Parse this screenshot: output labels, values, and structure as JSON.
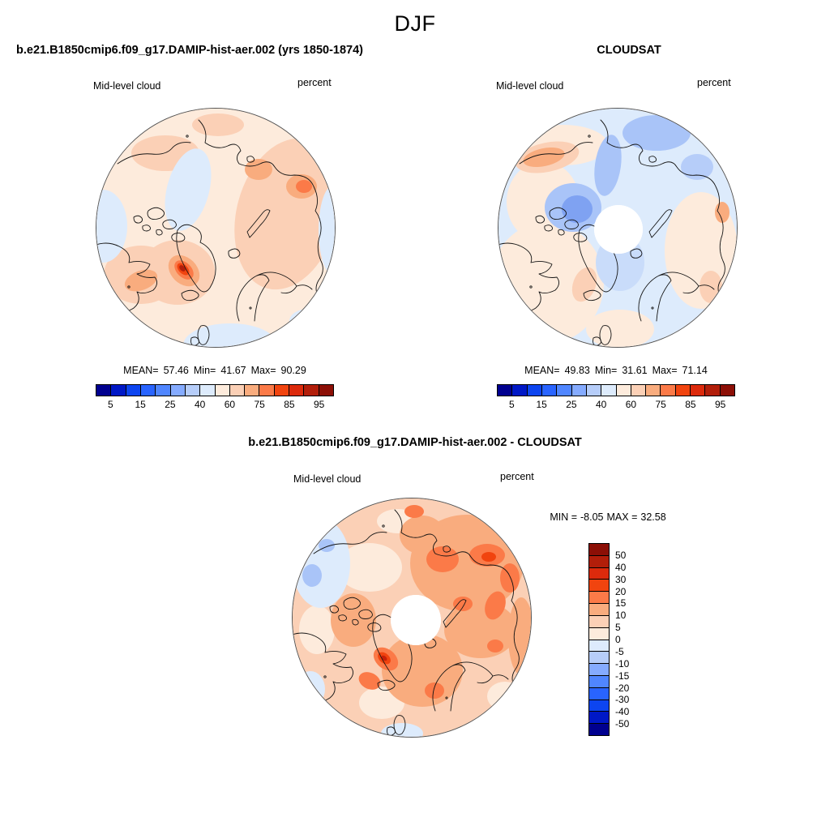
{
  "title": "DJF",
  "model_panel": {
    "title": "b.e21.B1850cmip6.f09_g17.DAMIP-hist-aer.002 (yrs 1850-1874)",
    "field": "Mid-level cloud",
    "units": "percent",
    "mean_label": "MEAN=",
    "mean": "57.46",
    "min_label": "Min=",
    "min": "41.67",
    "max_label": "Max=",
    "max": "90.29",
    "ticks": [
      "5",
      "15",
      "25",
      "40",
      "60",
      "75",
      "85",
      "95"
    ]
  },
  "obs_panel": {
    "title": "CLOUDSAT",
    "field": "Mid-level cloud",
    "units": "percent",
    "mean_label": "MEAN=",
    "mean": "49.83",
    "min_label": "Min=",
    "min": "31.61",
    "max_label": "Max=",
    "max": "71.14",
    "ticks": [
      "5",
      "15",
      "25",
      "40",
      "60",
      "75",
      "85",
      "95"
    ]
  },
  "diff_panel": {
    "title": "b.e21.B1850cmip6.f09_g17.DAMIP-hist-aer.002 - CLOUDSAT",
    "field": "Mid-level cloud",
    "units": "percent",
    "min_label": "MIN =",
    "min": "-8.05",
    "max_label": "MAX =",
    "max": "32.58",
    "ticks": [
      "50",
      "40",
      "30",
      "20",
      "15",
      "10",
      "5",
      "0",
      "-5",
      "-10",
      "-15",
      "-20",
      "-30",
      "-40",
      "-50"
    ]
  },
  "palette": [
    "#00008F",
    "#0018C6",
    "#0D45F0",
    "#2964FF",
    "#5086FF",
    "#85ABFF",
    "#B6CDF9",
    "#DDEBFC",
    "#FDEBDC",
    "#FBD0B6",
    "#F9AC7E",
    "#FB7A48",
    "#F1440F",
    "#DC2A0C",
    "#B21E0A",
    "#8C0F06"
  ],
  "chart_data": [
    {
      "type": "heatmap",
      "subtype": "north_polar_stereographic_filled_contour_map",
      "panel": "model",
      "season": "DJF",
      "title": "b.e21.B1850cmip6.f09_g17.DAMIP-hist-aer.002 (yrs 1850-1874)",
      "variable": "Mid-level cloud",
      "units": "percent",
      "stats": {
        "mean": 57.46,
        "min": 41.67,
        "max": 90.29
      },
      "contour_levels": [
        5,
        10,
        15,
        20,
        25,
        30,
        40,
        50,
        60,
        70,
        75,
        80,
        85,
        90,
        95
      ],
      "labeled_levels": [
        5,
        15,
        25,
        40,
        60,
        75,
        85,
        95
      ],
      "legend_position": "below",
      "depiction": "Mostly 50-70% cloud over the Arctic cap; strong local maximum ~90% over southern Greenland; 40-50% (pale blue) over central Arctic Ocean and at map edges; enhanced 60-75% band over Siberia"
    },
    {
      "type": "heatmap",
      "subtype": "north_polar_stereographic_filled_contour_map",
      "panel": "observations",
      "season": "DJF",
      "title": "CLOUDSAT",
      "variable": "Mid-level cloud",
      "units": "percent",
      "stats": {
        "mean": 49.83,
        "min": 31.61,
        "max": 71.14
      },
      "contour_levels": [
        5,
        10,
        15,
        20,
        25,
        30,
        40,
        50,
        60,
        70,
        75,
        80,
        85,
        90,
        95
      ],
      "labeled_levels": [
        5,
        15,
        25,
        40,
        60,
        75,
        85,
        95
      ],
      "legend_position": "below",
      "polar_data_hole": true,
      "depiction": "Mix of 40-50% (pale blue) and 50-60% (pale peach); deeper blue minimum ~30-40% over the Canadian Arctic Archipelago; white no-data circle at the pole"
    },
    {
      "type": "heatmap",
      "subtype": "north_polar_stereographic_filled_contour_map",
      "panel": "difference (model - observations)",
      "season": "DJF",
      "title": "b.e21.B1850cmip6.f09_g17.DAMIP-hist-aer.002 - CLOUDSAT",
      "variable": "Mid-level cloud",
      "units": "percent",
      "stats": {
        "min": -8.05,
        "max": 32.58
      },
      "contour_levels": [
        -50,
        -40,
        -30,
        -20,
        -15,
        -10,
        -5,
        0,
        5,
        10,
        15,
        20,
        30,
        40,
        50
      ],
      "labeled_levels": [
        50,
        40,
        30,
        20,
        15,
        10,
        5,
        0,
        -5,
        -10,
        -15,
        -20,
        -30,
        -40,
        -50
      ],
      "legend_position": "right",
      "polar_data_hole": true,
      "depiction": "Widespread positive bias +5 to +20 (orange/red) over most of the Arctic, strongest over Siberia and southern Greenland (+20 to +30); small negative patches (-5 to -10, blue) near Alaska and the map edges; white no-data circle at the pole"
    }
  ]
}
